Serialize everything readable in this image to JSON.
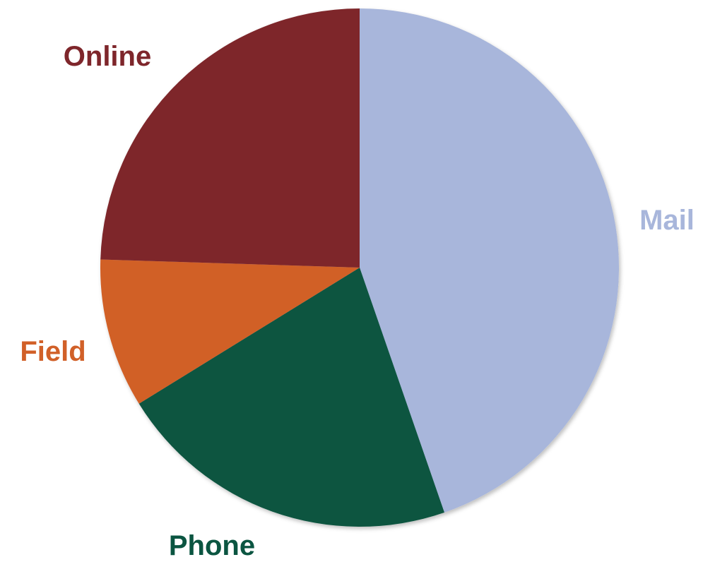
{
  "chart_data": {
    "type": "pie",
    "title": "",
    "start_angle_deg": 0,
    "direction": "clockwise",
    "slices": [
      {
        "label": "Mail",
        "value": 44.7,
        "color": "#A8B6DB"
      },
      {
        "label": "Phone",
        "value": 21.5,
        "color": "#0B5541"
      },
      {
        "label": "Field",
        "value": 9.3,
        "color": "#D16028"
      },
      {
        "label": "Online",
        "value": 24.5,
        "color": "#7E262B"
      }
    ]
  }
}
